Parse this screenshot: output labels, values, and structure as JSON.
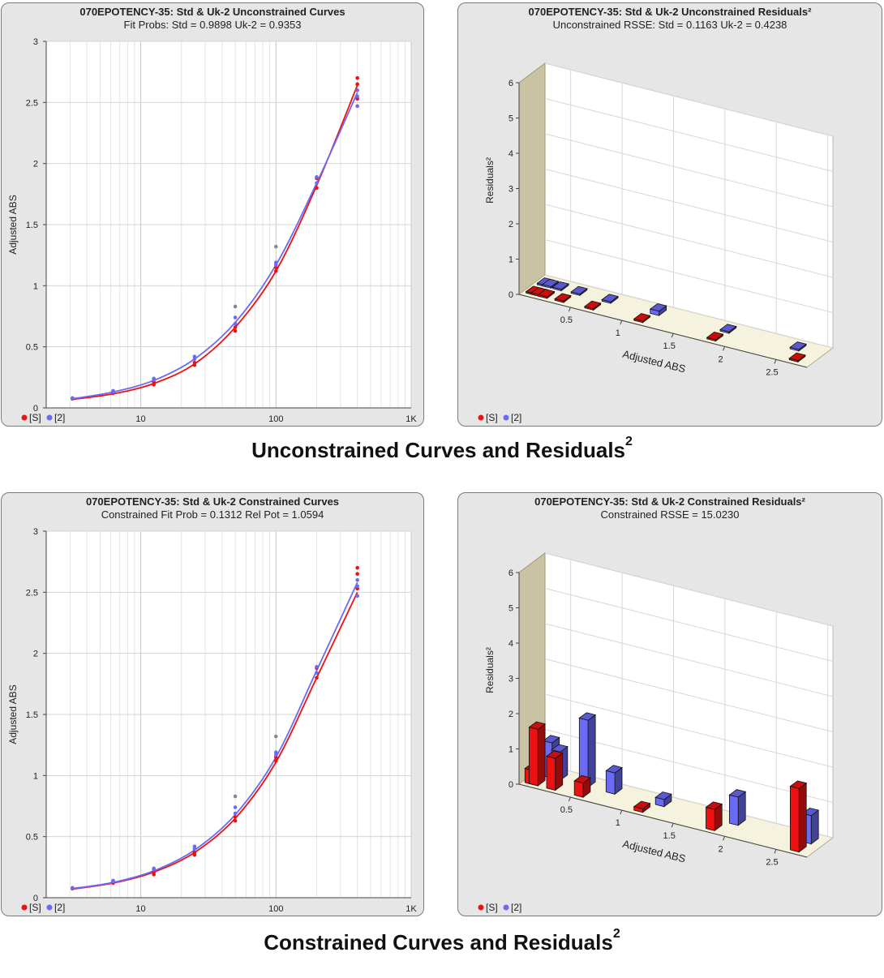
{
  "colors": {
    "std": "#ee1111",
    "uk2": "#6a6af5",
    "outlier": "#888888",
    "panel_bg": "#e6e6e6",
    "floor": "#f5f3dd",
    "wall": "#c9c2a3"
  },
  "legend": {
    "std": "[S]",
    "uk2": "[2]"
  },
  "captions": {
    "top": "Unconstrained Curves and Residuals",
    "bottom": "Constrained Curves and Residuals",
    "sup": "2"
  },
  "panels": {
    "tl": {
      "title": "070EPOTENCY-35:  Std & Uk-2  Unconstrained Curves",
      "subtitle": "Fit Probs: Std = 0.9898  Uk-2 = 0.9353"
    },
    "tr": {
      "title": "070EPOTENCY-35:  Std & Uk-2  Unconstrained Residuals²",
      "subtitle": "Unconstrained RSSE: Std = 0.1163  Uk-2 = 0.4238"
    },
    "bl": {
      "title": "070EPOTENCY-35:  Std & Uk-2 Constrained Curves",
      "subtitle": "Constrained Fit Prob = 0.1312  Rel Pot = 1.0594"
    },
    "br": {
      "title": "070EPOTENCY-35:  Std & Uk-2  Constrained Residuals²",
      "subtitle": "Constrained RSSE = 15.0230"
    }
  },
  "chart_data": [
    {
      "id": "tl",
      "type": "scatter",
      "title": "070EPOTENCY-35:  Std & Uk-2  Unconstrained Curves",
      "subtitle": "Fit Probs: Std = 0.9898  Uk-2 = 0.9353",
      "ylabel": "Adjusted ABS",
      "xlabel": "",
      "xscale": "log",
      "xlim": [
        2,
        1000
      ],
      "ylim": [
        0,
        3
      ],
      "xticks": [
        {
          "v": 10,
          "l": "10"
        },
        {
          "v": 100,
          "l": "100"
        },
        {
          "v": 1000,
          "l": "1K"
        }
      ],
      "yticks": [
        0,
        0.5,
        1,
        1.5,
        2,
        2.5,
        3
      ],
      "grid": true,
      "legend": "bottom-left",
      "series": [
        {
          "name": "[S]",
          "color": "#ee1111",
          "points": [
            [
              3.125,
              0.075
            ],
            [
              3.125,
              0.08
            ],
            [
              6.25,
              0.12
            ],
            [
              6.25,
              0.13
            ],
            [
              12.5,
              0.19
            ],
            [
              12.5,
              0.21
            ],
            [
              25,
              0.35
            ],
            [
              25,
              0.37
            ],
            [
              50,
              0.63
            ],
            [
              50,
              0.66
            ],
            [
              100,
              1.12
            ],
            [
              100,
              1.15
            ],
            [
              200,
              1.8
            ],
            [
              200,
              1.88
            ],
            [
              400,
              2.53
            ],
            [
              400,
              2.65
            ],
            [
              400,
              2.7
            ]
          ],
          "curve": [
            [
              3.125,
              0.07
            ],
            [
              6.25,
              0.115
            ],
            [
              12.5,
              0.2
            ],
            [
              25,
              0.36
            ],
            [
              50,
              0.66
            ],
            [
              100,
              1.12
            ],
            [
              200,
              1.82
            ],
            [
              400,
              2.64
            ]
          ]
        },
        {
          "name": "[2]",
          "color": "#6a6af5",
          "points": [
            [
              3.125,
              0.08
            ],
            [
              6.25,
              0.13
            ],
            [
              6.25,
              0.14
            ],
            [
              12.5,
              0.23
            ],
            [
              12.5,
              0.24
            ],
            [
              25,
              0.4
            ],
            [
              25,
              0.42
            ],
            [
              50,
              0.69
            ],
            [
              50,
              0.74
            ],
            [
              100,
              1.17
            ],
            [
              100,
              1.19
            ],
            [
              200,
              1.84
            ],
            [
              200,
              1.89
            ],
            [
              400,
              2.47
            ],
            [
              400,
              2.55
            ],
            [
              400,
              2.6
            ]
          ],
          "curve": [
            [
              3.125,
              0.075
            ],
            [
              6.25,
              0.13
            ],
            [
              12.5,
              0.225
            ],
            [
              25,
              0.4
            ],
            [
              50,
              0.7
            ],
            [
              100,
              1.17
            ],
            [
              200,
              1.84
            ],
            [
              400,
              2.58
            ]
          ]
        },
        {
          "name": "",
          "color": "#888888",
          "points": [
            [
              50,
              0.83
            ],
            [
              100,
              1.32
            ]
          ]
        }
      ]
    },
    {
      "id": "tr",
      "type": "bar",
      "title": "070EPOTENCY-35:  Std & Uk-2  Unconstrained Residuals²",
      "subtitle": "Unconstrained RSSE: Std = 0.1163  Uk-2 = 0.4238",
      "xlabel": "Adjusted ABS",
      "ylabel": "Residuals²",
      "xlim": [
        0,
        2.8
      ],
      "ylim": [
        0,
        6
      ],
      "xticks": [
        0.5,
        1,
        1.5,
        2,
        2.5
      ],
      "yticks": [
        0,
        1,
        2,
        3,
        4,
        5,
        6
      ],
      "grid": true,
      "legend": "bottom-left",
      "series": [
        {
          "name": "[S]",
          "color": "#ee1111",
          "x": [
            0.08,
            0.13,
            0.2,
            0.36,
            0.65,
            1.13,
            1.84,
            2.64
          ],
          "values": [
            0.02,
            0.02,
            0.02,
            0.02,
            0.02,
            0.02,
            0.02,
            0.03
          ]
        },
        {
          "name": "[2]",
          "color": "#6a6af5",
          "x": [
            0.08,
            0.13,
            0.23,
            0.41,
            0.71,
            1.18,
            1.86,
            2.54
          ],
          "values": [
            0.03,
            0.02,
            0.04,
            0.02,
            0.02,
            0.12,
            0.02,
            0.02
          ]
        }
      ]
    },
    {
      "id": "bl",
      "type": "scatter",
      "title": "070EPOTENCY-35:  Std & Uk-2 Constrained Curves",
      "subtitle": "Constrained Fit Prob = 0.1312  Rel Pot = 1.0594",
      "ylabel": "Adjusted ABS",
      "xlabel": "",
      "xscale": "log",
      "xlim": [
        2,
        1000
      ],
      "ylim": [
        0,
        3
      ],
      "xticks": [
        {
          "v": 10,
          "l": "10"
        },
        {
          "v": 100,
          "l": "100"
        },
        {
          "v": 1000,
          "l": "1K"
        }
      ],
      "yticks": [
        0,
        0.5,
        1,
        1.5,
        2,
        2.5,
        3
      ],
      "grid": true,
      "legend": "bottom-left",
      "series": [
        {
          "name": "[S]",
          "color": "#ee1111",
          "points": [
            [
              3.125,
              0.075
            ],
            [
              3.125,
              0.08
            ],
            [
              6.25,
              0.12
            ],
            [
              6.25,
              0.13
            ],
            [
              12.5,
              0.19
            ],
            [
              12.5,
              0.21
            ],
            [
              25,
              0.35
            ],
            [
              25,
              0.37
            ],
            [
              50,
              0.63
            ],
            [
              50,
              0.66
            ],
            [
              100,
              1.12
            ],
            [
              100,
              1.15
            ],
            [
              200,
              1.8
            ],
            [
              200,
              1.88
            ],
            [
              400,
              2.53
            ],
            [
              400,
              2.65
            ],
            [
              400,
              2.7
            ]
          ],
          "curve": [
            [
              3.125,
              0.07
            ],
            [
              6.25,
              0.12
            ],
            [
              12.5,
              0.21
            ],
            [
              25,
              0.37
            ],
            [
              50,
              0.65
            ],
            [
              100,
              1.11
            ],
            [
              200,
              1.8
            ],
            [
              400,
              2.5
            ]
          ]
        },
        {
          "name": "[2]",
          "color": "#6a6af5",
          "points": [
            [
              3.125,
              0.08
            ],
            [
              6.25,
              0.13
            ],
            [
              6.25,
              0.14
            ],
            [
              12.5,
              0.23
            ],
            [
              12.5,
              0.24
            ],
            [
              25,
              0.4
            ],
            [
              25,
              0.42
            ],
            [
              50,
              0.69
            ],
            [
              50,
              0.74
            ],
            [
              100,
              1.17
            ],
            [
              100,
              1.19
            ],
            [
              200,
              1.84
            ],
            [
              200,
              1.89
            ],
            [
              400,
              2.47
            ],
            [
              400,
              2.55
            ],
            [
              400,
              2.6
            ]
          ],
          "curve": [
            [
              3.125,
              0.075
            ],
            [
              6.25,
              0.125
            ],
            [
              12.5,
              0.22
            ],
            [
              25,
              0.39
            ],
            [
              50,
              0.68
            ],
            [
              100,
              1.15
            ],
            [
              200,
              1.86
            ],
            [
              400,
              2.58
            ]
          ]
        },
        {
          "name": "",
          "color": "#888888",
          "points": [
            [
              50,
              0.83
            ],
            [
              100,
              1.32
            ]
          ]
        }
      ]
    },
    {
      "id": "br",
      "type": "bar",
      "title": "070EPOTENCY-35:  Std & Uk-2  Constrained Residuals²",
      "subtitle": "Constrained RSSE = 15.0230",
      "xlabel": "Adjusted ABS",
      "ylabel": "Residuals²",
      "xlim": [
        0,
        2.8
      ],
      "ylim": [
        0,
        6
      ],
      "xticks": [
        0.5,
        1,
        1.5,
        2,
        2.5
      ],
      "yticks": [
        0,
        1,
        2,
        3,
        4,
        5,
        6
      ],
      "grid": true,
      "legend": "bottom-left",
      "series": [
        {
          "name": "[S]",
          "color": "#ee1111",
          "x": [
            0.07,
            0.11,
            0.28,
            0.55,
            1.13,
            1.83,
            2.65
          ],
          "values": [
            0.4,
            1.6,
            0.9,
            0.4,
            0.1,
            0.6,
            1.8
          ]
        },
        {
          "name": "[2]",
          "color": "#6a6af5",
          "x": [
            0.14,
            0.22,
            0.49,
            0.75,
            1.23,
            1.95,
            2.66
          ],
          "values": [
            1.0,
            0.8,
            1.9,
            0.6,
            0.2,
            0.8,
            0.8
          ]
        }
      ]
    }
  ]
}
